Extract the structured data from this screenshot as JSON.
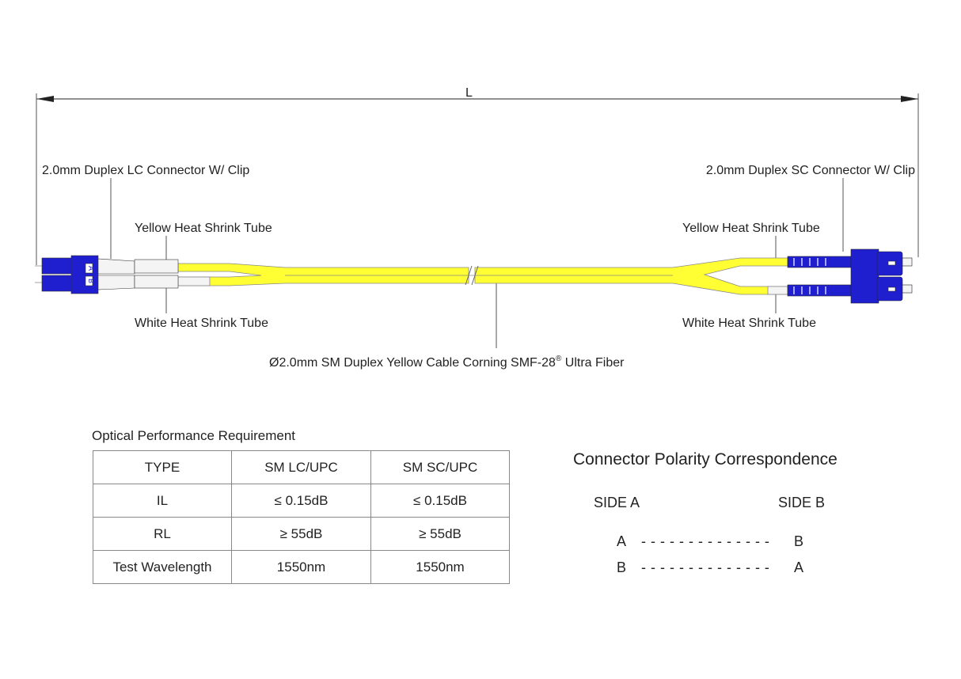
{
  "diagram": {
    "length_label": "L",
    "left_connector": "2.0mm Duplex LC Connector W/ Clip",
    "right_connector": "2.0mm Duplex SC Connector W/ Clip",
    "left_yellow_tube": "Yellow Heat Shrink Tube",
    "left_white_tube": "White Heat Shrink Tube",
    "right_yellow_tube": "Yellow Heat Shrink Tube",
    "right_white_tube": "White Heat Shrink Tube",
    "cable": "Ø2.0mm SM Duplex Yellow Cable  Corning SMF-28",
    "cable_reg": "®",
    "cable_suffix": " Ultra Fiber",
    "lc_label_a": "A",
    "lc_label_b": "B",
    "colors": {
      "cable": "#ffff33",
      "connector": "#1f1fd0",
      "boot": "#f4f4f4"
    }
  },
  "table": {
    "title": "Optical Performance Requirement",
    "header": [
      "TYPE",
      "SM LC/UPC",
      "SM SC/UPC"
    ],
    "rows": [
      [
        "IL",
        "≤ 0.15dB",
        "≤ 0.15dB"
      ],
      [
        "RL",
        "≥ 55dB",
        "≥ 55dB"
      ],
      [
        "Test Wavelength",
        "1550nm",
        "1550nm"
      ]
    ]
  },
  "polarity": {
    "title": "Connector Polarity Correspondence",
    "side_a": "SIDE A",
    "side_b": "SIDE B",
    "rows": [
      {
        "a": "A",
        "dash": "- - - - - - - - - - - - - -",
        "b": "B"
      },
      {
        "a": "B",
        "dash": "- - - - - - - - - - - - - -",
        "b": "A"
      }
    ]
  }
}
